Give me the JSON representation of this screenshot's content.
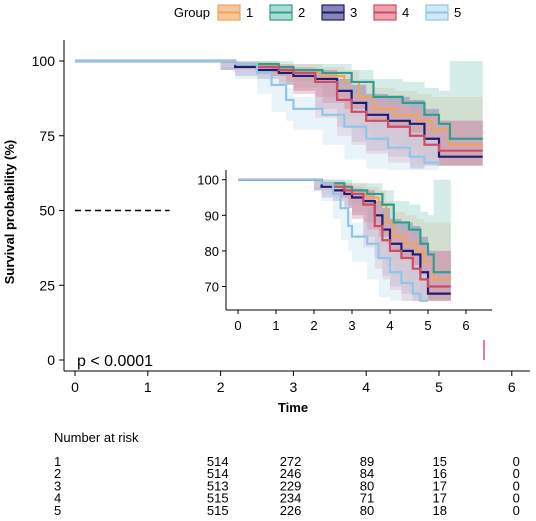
{
  "chart_data": [
    {
      "type": "line",
      "kind": "kaplan-meier",
      "title": "",
      "xlabel": "Time",
      "ylabel": "Survival probability (%)",
      "xlim": [
        0,
        6
      ],
      "ylim": [
        0,
        100
      ],
      "x_ticks": [
        "0",
        "1",
        "2",
        "3",
        "4",
        "5",
        "6"
      ],
      "y_ticks": [
        "0",
        "25",
        "50",
        "75",
        "100"
      ],
      "grid": false,
      "legend_title": "Group",
      "legend_position": "top",
      "pvalue_text": "p < 0.0001",
      "median_reference": 50,
      "confidence_bands": true,
      "series": [
        {
          "name": "1",
          "color": "#f0a35e",
          "fill": "#f6c79b",
          "x": [
            0,
            2.0,
            2.2,
            2.5,
            2.8,
            3.0,
            3.4,
            3.7,
            3.9,
            4.1,
            4.4,
            4.7,
            4.9,
            5.15,
            5.6
          ],
          "y": [
            100,
            100,
            99,
            98,
            97,
            96,
            95,
            93,
            88,
            84,
            82,
            80,
            77,
            72,
            72
          ],
          "lower": [
            100,
            100,
            98,
            97,
            95,
            93,
            91,
            88,
            81,
            76,
            73,
            70,
            66,
            65,
            65
          ],
          "upper": [
            100,
            100,
            100,
            100,
            99,
            99,
            98,
            97,
            94,
            91,
            90,
            89,
            88,
            88,
            88
          ]
        },
        {
          "name": "2",
          "color": "#2f9e8f",
          "fill": "#a9dcd4",
          "x": [
            0,
            2.0,
            2.2,
            2.5,
            2.8,
            3.0,
            3.4,
            3.8,
            4.1,
            4.5,
            4.8,
            5.0,
            5.15,
            5.6
          ],
          "y": [
            100,
            100,
            99,
            99,
            98,
            97,
            96,
            93,
            88,
            86,
            82,
            79,
            74,
            74
          ],
          "lower": [
            100,
            100,
            98,
            97,
            96,
            95,
            93,
            88,
            82,
            78,
            72,
            68,
            65,
            65
          ],
          "upper": [
            100,
            100,
            100,
            100,
            100,
            99,
            99,
            97,
            94,
            93,
            91,
            90,
            100,
            100
          ]
        },
        {
          "name": "3",
          "color": "#1f1d6e",
          "fill": "#8784b6",
          "x": [
            0,
            2.0,
            2.2,
            2.5,
            2.8,
            3.0,
            3.3,
            3.6,
            3.8,
            4.0,
            4.3,
            4.6,
            4.8,
            5.0,
            5.6
          ],
          "y": [
            100,
            100,
            98,
            97,
            96,
            95,
            94,
            90,
            86,
            82,
            80,
            79,
            74,
            68,
            68
          ],
          "lower": [
            100,
            100,
            97,
            95,
            94,
            92,
            90,
            84,
            78,
            73,
            70,
            68,
            64,
            65,
            65
          ],
          "upper": [
            100,
            100,
            99,
            99,
            98,
            97,
            97,
            94,
            92,
            89,
            88,
            87,
            84,
            80,
            80
          ]
        },
        {
          "name": "4",
          "color": "#cf4c64",
          "fill": "#eda1ad",
          "x": [
            0,
            2.0,
            2.2,
            2.5,
            2.8,
            3.0,
            3.3,
            3.6,
            3.8,
            4.0,
            4.3,
            4.6,
            4.8,
            5.0,
            5.6
          ],
          "y": [
            100,
            100,
            99,
            98,
            97,
            96,
            93,
            87,
            83,
            80,
            78,
            75,
            72,
            70,
            70
          ],
          "lower": [
            100,
            100,
            98,
            96,
            95,
            93,
            89,
            81,
            75,
            72,
            69,
            66,
            65,
            65,
            65
          ],
          "upper": [
            100,
            100,
            100,
            99,
            99,
            98,
            97,
            92,
            89,
            87,
            86,
            84,
            82,
            80,
            80
          ]
        },
        {
          "name": "5",
          "color": "#8fc6ea",
          "fill": "#d1e8f6",
          "x": [
            0,
            2.0,
            2.2,
            2.5,
            2.7,
            2.9,
            3.0,
            3.4,
            3.7,
            4.0,
            4.3,
            4.6,
            4.8,
            5.0
          ],
          "y": [
            100,
            100,
            99,
            96,
            92,
            87,
            84,
            82,
            78,
            74,
            71,
            68,
            66,
            65
          ],
          "lower": [
            100,
            100,
            98,
            94,
            89,
            83,
            80,
            77,
            72,
            67,
            64,
            62,
            60,
            60
          ],
          "upper": [
            100,
            100,
            100,
            98,
            95,
            91,
            88,
            86,
            84,
            80,
            78,
            76,
            74,
            72
          ]
        }
      ]
    },
    {
      "type": "line",
      "kind": "kaplan-meier-inset",
      "xlim": [
        0,
        6
      ],
      "ylim": [
        66,
        100
      ],
      "x_ticks": [
        "0",
        "1",
        "2",
        "3",
        "4",
        "5",
        "6"
      ],
      "y_ticks": [
        "70",
        "80",
        "90",
        "100"
      ],
      "grid": false,
      "series_from": "main"
    },
    {
      "type": "table",
      "title": "Number at risk",
      "times": [
        2,
        3,
        4,
        5,
        6
      ],
      "rows": [
        {
          "group": "1",
          "values": [
            "514",
            "272",
            "89",
            "15",
            "0"
          ]
        },
        {
          "group": "2",
          "values": [
            "514",
            "246",
            "84",
            "16",
            "0"
          ]
        },
        {
          "group": "3",
          "values": [
            "513",
            "229",
            "80",
            "17",
            "0"
          ]
        },
        {
          "group": "4",
          "values": [
            "515",
            "234",
            "71",
            "17",
            "0"
          ]
        },
        {
          "group": "5",
          "values": [
            "515",
            "226",
            "80",
            "18",
            "0"
          ]
        }
      ]
    }
  ]
}
